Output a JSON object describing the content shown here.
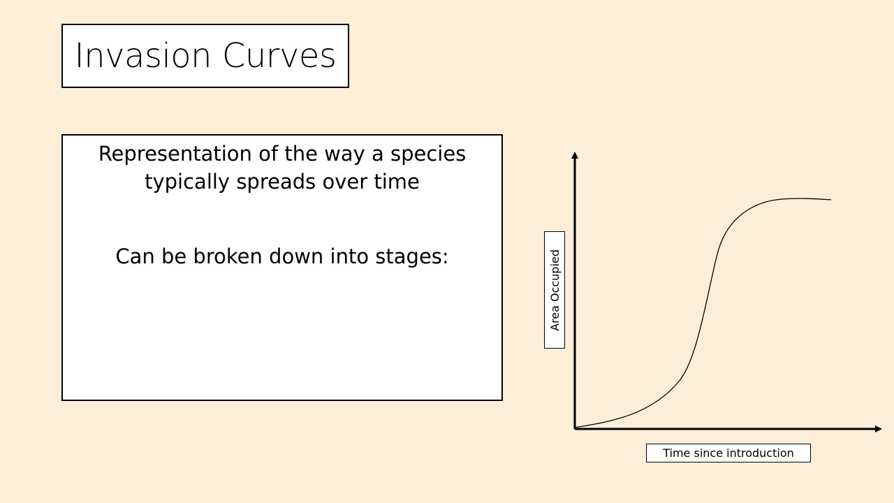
{
  "slide": {
    "title": "Invasion Curves",
    "content": {
      "line1": "Representation of the way a species",
      "line2": "typically spreads over time",
      "line3": "Can be broken down into stages:"
    }
  },
  "chart_data": {
    "type": "line",
    "xlabel": "Time since introduction",
    "ylabel": "Area Occupied",
    "shape": "sigmoid",
    "grid": false,
    "axis_ticks": false,
    "series": [
      {
        "x": [
          0,
          0.1,
          0.2,
          0.3,
          0.4,
          0.45,
          0.5,
          0.55,
          0.6,
          0.7,
          0.8,
          0.9,
          1.0
        ],
        "values": [
          0,
          0.03,
          0.07,
          0.14,
          0.22,
          0.43,
          0.7,
          0.88,
          0.95,
          0.99,
          1.0,
          1.0,
          0.99
        ]
      }
    ],
    "colors": {
      "curve": "#000000",
      "axes": "#000000",
      "background": "#fdeeda"
    }
  }
}
